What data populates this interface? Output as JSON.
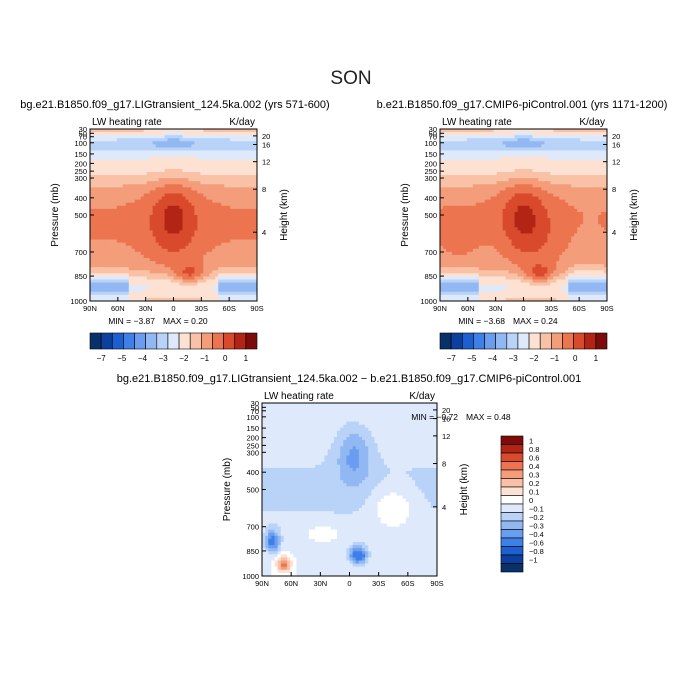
{
  "title": "SON",
  "chart_data": [
    {
      "type": "heatmap",
      "title": "bg.e21.B1850.f09_g17.LIGtransient_124.5ka.002 (yrs 571-600)",
      "variable_label": "LW heating rate",
      "units": "K/day",
      "xlabel": "",
      "ylabel": "Pressure (mb)",
      "y2label": "Height (km)",
      "x_tick_labels": [
        "90N",
        "60N",
        "30N",
        "0",
        "30S",
        "60S",
        "90S"
      ],
      "y_tick_labels": [
        "30",
        "50",
        "70",
        "100",
        "150",
        "200",
        "250",
        "300",
        "400",
        "500",
        "700",
        "850",
        "1000"
      ],
      "y2_tick_labels": [
        "20",
        "16",
        "12",
        "8",
        "4"
      ],
      "min_text": "MIN = −3.87",
      "max_text": "MAX = 0.20",
      "min": -3.87,
      "max": 0.2,
      "colorbar": {
        "orientation": "horizontal",
        "labels": [
          "−7",
          "−5",
          "−4",
          "−3",
          "−2",
          "−1",
          "0",
          "1"
        ],
        "colors": [
          "#08306b",
          "#0d3f9f",
          "#1b5fd1",
          "#3f7fe8",
          "#6a9df0",
          "#92b8f4",
          "#b9d3f8",
          "#deeafc",
          "#fde2d3",
          "#f9c2a6",
          "#f49d7b",
          "#ec744f",
          "#d94a2c",
          "#b42414",
          "#7d0b0b"
        ]
      }
    },
    {
      "type": "heatmap",
      "title": "b.e21.B1850.f09_g17.CMIP6-piControl.001 (yrs 1171-1200)",
      "variable_label": "LW heating rate",
      "units": "K/day",
      "xlabel": "",
      "ylabel": "Pressure (mb)",
      "y2label": "Height (km)",
      "x_tick_labels": [
        "90N",
        "60N",
        "30N",
        "0",
        "30S",
        "60S",
        "90S"
      ],
      "y_tick_labels": [
        "30",
        "50",
        "70",
        "100",
        "150",
        "200",
        "250",
        "300",
        "400",
        "500",
        "700",
        "850",
        "1000"
      ],
      "y2_tick_labels": [
        "20",
        "16",
        "12",
        "8",
        "4"
      ],
      "min_text": "MIN = −3.68",
      "max_text": "MAX = 0.24",
      "min": -3.68,
      "max": 0.24,
      "colorbar": {
        "orientation": "horizontal",
        "labels": [
          "−7",
          "−5",
          "−4",
          "−3",
          "−2",
          "−1",
          "0",
          "1"
        ],
        "colors": [
          "#08306b",
          "#0d3f9f",
          "#1b5fd1",
          "#3f7fe8",
          "#6a9df0",
          "#92b8f4",
          "#b9d3f8",
          "#deeafc",
          "#fde2d3",
          "#f9c2a6",
          "#f49d7b",
          "#ec744f",
          "#d94a2c",
          "#b42414",
          "#7d0b0b"
        ]
      }
    },
    {
      "type": "heatmap",
      "title": "bg.e21.B1850.f09_g17.LIGtransient_124.5ka.002 − b.e21.B1850.f09_g17.CMIP6-piControl.001",
      "variable_label": "LW heating rate",
      "units": "K/day",
      "xlabel": "",
      "ylabel": "Pressure (mb)",
      "y2label": "Height (km)",
      "x_tick_labels": [
        "90N",
        "60N",
        "30N",
        "0",
        "30S",
        "60S",
        "90S"
      ],
      "y_tick_labels": [
        "30",
        "50",
        "70",
        "100",
        "150",
        "200",
        "250",
        "300",
        "400",
        "500",
        "700",
        "850",
        "1000"
      ],
      "y2_tick_labels": [
        "20",
        "16",
        "12",
        "8",
        "4"
      ],
      "min_text": "MIN = −0.72",
      "max_text": "MAX = 0.48",
      "min": -0.72,
      "max": 0.48,
      "colorbar": {
        "orientation": "vertical",
        "labels": [
          "1",
          "0.8",
          "0.6",
          "0.4",
          "0.3",
          "0.2",
          "0.1",
          "0",
          "−0.1",
          "−0.2",
          "−0.3",
          "−0.4",
          "−0.6",
          "−0.8",
          "−1"
        ],
        "colors": [
          "#7d0b0b",
          "#b42414",
          "#d94a2c",
          "#ec744f",
          "#f49d7b",
          "#f9c2a6",
          "#fde2d3",
          "#ffffff",
          "#deeafc",
          "#b9d3f8",
          "#92b8f4",
          "#6a9df0",
          "#3f7fe8",
          "#1b5fd1",
          "#0d3f9f",
          "#08306b"
        ]
      }
    }
  ]
}
